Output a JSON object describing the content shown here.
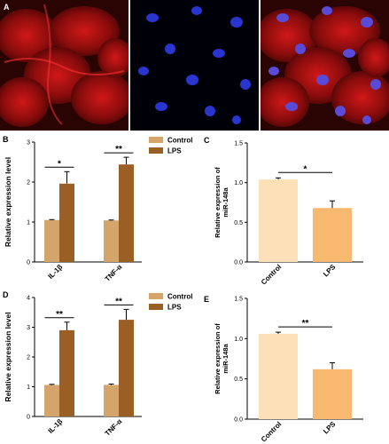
{
  "figure": {
    "panels": {
      "A": "A",
      "B": "B",
      "C": "C",
      "D": "D",
      "E": "E"
    }
  },
  "colors": {
    "control_bar": "#D4A56A",
    "lps_bar": "#9A5F24",
    "control_bar_light": "#FDDFB8",
    "lps_bar_light": "#F7B970"
  },
  "chart_data": [
    {
      "id": "B",
      "type": "bar",
      "ylabel": "Relative expression level",
      "ylim": [
        0,
        3
      ],
      "yticks": [
        0,
        1,
        2,
        3
      ],
      "categories": [
        "IL-1β",
        "TNF-α"
      ],
      "series": [
        {
          "name": "Control",
          "values": [
            1.05,
            1.04
          ],
          "errors": [
            0.01,
            0.01
          ]
        },
        {
          "name": "LPS",
          "values": [
            1.96,
            2.44
          ],
          "errors": [
            0.3,
            0.18
          ]
        }
      ],
      "significance": [
        "*",
        "**"
      ],
      "legend": "top-right"
    },
    {
      "id": "C",
      "type": "bar",
      "ylabel_lines": [
        "Relative expression of",
        "miR-148a"
      ],
      "ylim": [
        0,
        1.5
      ],
      "yticks": [
        "0.0",
        "0.5",
        "1.0",
        "1.5"
      ],
      "categories": [
        "Control",
        "LPS"
      ],
      "values": [
        1.04,
        0.68
      ],
      "errors": [
        0.02,
        0.09
      ],
      "significance": "*"
    },
    {
      "id": "D",
      "type": "bar",
      "ylabel": "Relative expression level",
      "ylim": [
        0,
        4
      ],
      "yticks": [
        0,
        1,
        2,
        3,
        4
      ],
      "categories": [
        "IL-1β",
        "TNF-α"
      ],
      "series": [
        {
          "name": "Control",
          "values": [
            1.06,
            1.06
          ],
          "errors": [
            0.02,
            0.03
          ]
        },
        {
          "name": "LPS",
          "values": [
            2.9,
            3.25
          ],
          "errors": [
            0.27,
            0.35
          ]
        }
      ],
      "significance": [
        "**",
        "**"
      ],
      "legend": "top-right"
    },
    {
      "id": "E",
      "type": "bar",
      "ylabel_lines": [
        "Relative expression of",
        "miR-148a"
      ],
      "ylim": [
        0,
        1.5
      ],
      "yticks": [
        "0.0",
        "0.5",
        "1.0",
        "1.5"
      ],
      "categories": [
        "Control",
        "LPS"
      ],
      "values": [
        1.06,
        0.62
      ],
      "errors": [
        0.02,
        0.08
      ],
      "significance": "**"
    }
  ]
}
